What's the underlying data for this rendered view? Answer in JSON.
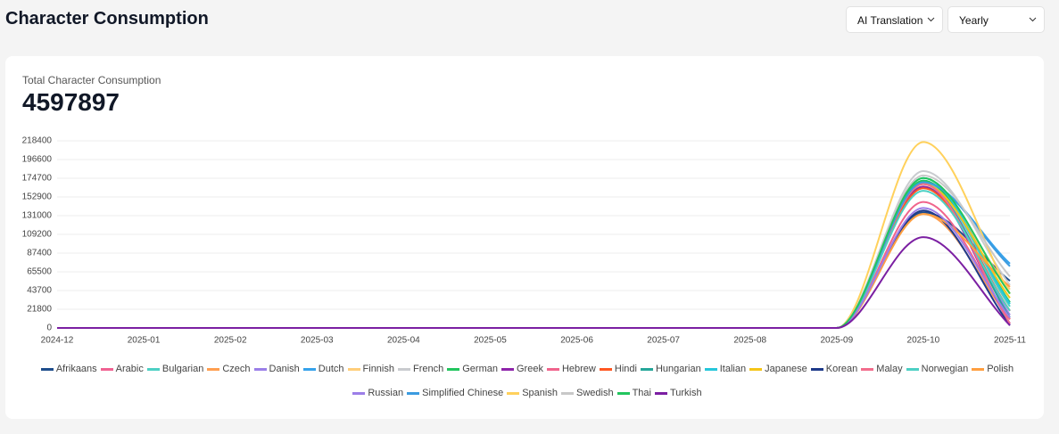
{
  "header": {
    "title": "Character Consumption",
    "filters": [
      "AI Translation",
      "Yearly"
    ]
  },
  "summary": {
    "label": "Total Character Consumption",
    "value": "4597897"
  },
  "chart_data": {
    "type": "line",
    "categories": [
      "2024-12",
      "2025-01",
      "2025-02",
      "2025-03",
      "2025-04",
      "2025-05",
      "2025-06",
      "2025-07",
      "2025-08",
      "2025-09",
      "2025-10",
      "2025-11"
    ],
    "ylim": [
      0,
      218400
    ],
    "yticks": [
      0,
      21800,
      43700,
      65500,
      87400,
      109200,
      131000,
      152900,
      174700,
      196600,
      218400
    ],
    "grid": true,
    "series": [
      {
        "name": "Afrikaans",
        "color": "#1f4e8c",
        "values": [
          0,
          0,
          0,
          0,
          0,
          0,
          0,
          0,
          0,
          0,
          135000,
          55000
        ]
      },
      {
        "name": "Arabic",
        "color": "#f06292",
        "values": [
          0,
          0,
          0,
          0,
          0,
          0,
          0,
          0,
          0,
          0,
          165000,
          20000
        ]
      },
      {
        "name": "Bulgarian",
        "color": "#4dd0c4",
        "values": [
          0,
          0,
          0,
          0,
          0,
          0,
          0,
          0,
          0,
          0,
          170000,
          25000
        ]
      },
      {
        "name": "Czech",
        "color": "#ff9f50",
        "values": [
          0,
          0,
          0,
          0,
          0,
          0,
          0,
          0,
          0,
          0,
          133000,
          10000
        ]
      },
      {
        "name": "Danish",
        "color": "#9b7fe8",
        "values": [
          0,
          0,
          0,
          0,
          0,
          0,
          0,
          0,
          0,
          0,
          168000,
          15000
        ]
      },
      {
        "name": "Dutch",
        "color": "#36a2eb",
        "values": [
          0,
          0,
          0,
          0,
          0,
          0,
          0,
          0,
          0,
          0,
          170000,
          75000
        ]
      },
      {
        "name": "Finnish",
        "color": "#ffce7a",
        "values": [
          0,
          0,
          0,
          0,
          0,
          0,
          0,
          0,
          0,
          0,
          165000,
          45000
        ]
      },
      {
        "name": "French",
        "color": "#c9cbcf",
        "values": [
          0,
          0,
          0,
          0,
          0,
          0,
          0,
          0,
          0,
          0,
          183000,
          50000
        ]
      },
      {
        "name": "German",
        "color": "#22c55e",
        "values": [
          0,
          0,
          0,
          0,
          0,
          0,
          0,
          0,
          0,
          0,
          172000,
          30000
        ]
      },
      {
        "name": "Greek",
        "color": "#8e24aa",
        "values": [
          0,
          0,
          0,
          0,
          0,
          0,
          0,
          0,
          0,
          0,
          165000,
          5000
        ]
      },
      {
        "name": "Hebrew",
        "color": "#f0648c",
        "values": [
          0,
          0,
          0,
          0,
          0,
          0,
          0,
          0,
          0,
          0,
          147000,
          10000
        ]
      },
      {
        "name": "Hindi",
        "color": "#ff5722",
        "values": [
          0,
          0,
          0,
          0,
          0,
          0,
          0,
          0,
          0,
          0,
          163000,
          20000
        ]
      },
      {
        "name": "Hungarian",
        "color": "#26a69a",
        "values": [
          0,
          0,
          0,
          0,
          0,
          0,
          0,
          0,
          0,
          0,
          168000,
          12000
        ]
      },
      {
        "name": "Italian",
        "color": "#26c6da",
        "values": [
          0,
          0,
          0,
          0,
          0,
          0,
          0,
          0,
          0,
          0,
          175000,
          28000
        ]
      },
      {
        "name": "Japanese",
        "color": "#f5c518",
        "values": [
          0,
          0,
          0,
          0,
          0,
          0,
          0,
          0,
          0,
          0,
          168000,
          35000
        ]
      },
      {
        "name": "Korean",
        "color": "#1e3a8a",
        "values": [
          0,
          0,
          0,
          0,
          0,
          0,
          0,
          0,
          0,
          0,
          137000,
          3000
        ]
      },
      {
        "name": "Malay",
        "color": "#f26d8c",
        "values": [
          0,
          0,
          0,
          0,
          0,
          0,
          0,
          0,
          0,
          0,
          168000,
          5000
        ]
      },
      {
        "name": "Norwegian",
        "color": "#4dd0c4",
        "values": [
          0,
          0,
          0,
          0,
          0,
          0,
          0,
          0,
          0,
          0,
          160000,
          20000
        ]
      },
      {
        "name": "Polish",
        "color": "#ff9f40",
        "values": [
          0,
          0,
          0,
          0,
          0,
          0,
          0,
          0,
          0,
          0,
          133000,
          48000
        ]
      },
      {
        "name": "Russian",
        "color": "#9c7ee8",
        "values": [
          0,
          0,
          0,
          0,
          0,
          0,
          0,
          0,
          0,
          0,
          140000,
          12000
        ]
      },
      {
        "name": "Simplified Chinese",
        "color": "#3b9be0",
        "values": [
          0,
          0,
          0,
          0,
          0,
          0,
          0,
          0,
          0,
          0,
          170000,
          72000
        ]
      },
      {
        "name": "Spanish",
        "color": "#ffd15c",
        "values": [
          0,
          0,
          0,
          0,
          0,
          0,
          0,
          0,
          0,
          0,
          217000,
          40000
        ]
      },
      {
        "name": "Swedish",
        "color": "#c8c8c8",
        "values": [
          0,
          0,
          0,
          0,
          0,
          0,
          0,
          0,
          0,
          0,
          178000,
          60000
        ]
      },
      {
        "name": "Thai",
        "color": "#22c55e",
        "values": [
          0,
          0,
          0,
          0,
          0,
          0,
          0,
          0,
          0,
          0,
          175000,
          40000
        ]
      },
      {
        "name": "Turkish",
        "color": "#7b1fa2",
        "values": [
          0,
          0,
          0,
          0,
          0,
          0,
          0,
          0,
          0,
          0,
          106000,
          3000
        ]
      }
    ]
  }
}
